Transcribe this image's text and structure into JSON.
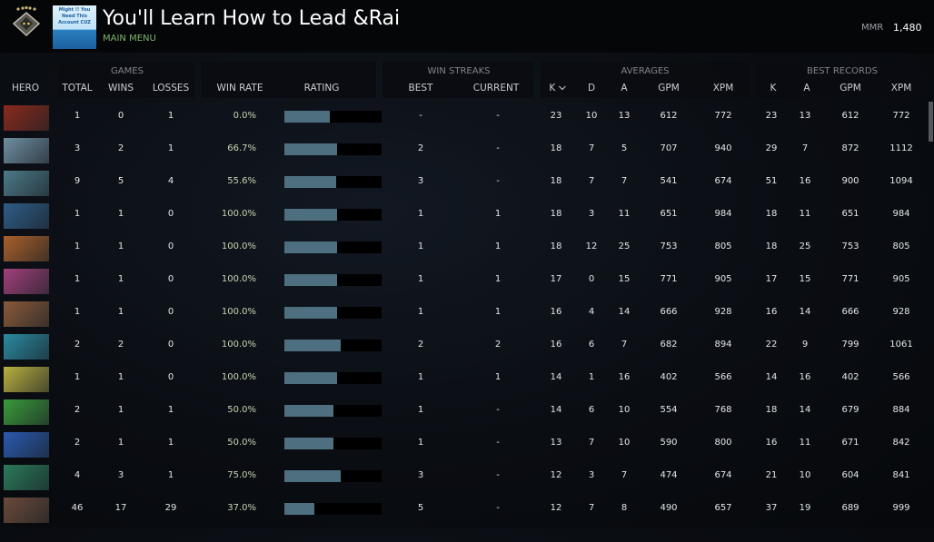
{
  "header": {
    "profile_name": "You'll Learn How to Lead &Rai",
    "subtitle": "MAIN MENU",
    "avatar_text": "Might !! You Need This Account CUZ",
    "mmr_label": "MMR",
    "mmr_value": "1,480"
  },
  "columns": {
    "hero": "HERO",
    "games_group": "GAMES",
    "total": "TOTAL",
    "wins": "WINS",
    "losses": "LOSSES",
    "win_rate": "WIN RATE",
    "rating": "RATING",
    "streaks_group": "WIN STREAKS",
    "best": "BEST",
    "current": "CURRENT",
    "averages_group": "AVERAGES",
    "k": "K",
    "d": "D",
    "a": "A",
    "gpm": "GPM",
    "xpm": "XPM",
    "records_group": "BEST RECORDS",
    "rk": "K",
    "ra": "A",
    "rgpm": "GPM",
    "rxpm": "XPM",
    "sort_icon": "chevron-down-icon"
  },
  "colors": {
    "rating_bar": "#4e6f80",
    "win_rate_text": "#c4d6b0",
    "subtitle": "#7fb46a"
  },
  "rows": [
    {
      "portrait_color": "#8a2a1c",
      "total": "1",
      "wins": "0",
      "losses": "1",
      "win_rate": "0.0%",
      "rating_fraction": 0.47,
      "best": "-",
      "current": "-",
      "k": "23",
      "d": "10",
      "a": "13",
      "gpm": "612",
      "xpm": "772",
      "rk": "23",
      "ra": "13",
      "rgpm": "612",
      "rxpm": "772"
    },
    {
      "portrait_color": "#6f8ea0",
      "total": "3",
      "wins": "2",
      "losses": "1",
      "win_rate": "66.7%",
      "rating_fraction": 0.54,
      "best": "2",
      "current": "-",
      "k": "18",
      "d": "7",
      "a": "5",
      "gpm": "707",
      "xpm": "940",
      "rk": "29",
      "ra": "7",
      "rgpm": "872",
      "rxpm": "1112"
    },
    {
      "portrait_color": "#4c7a88",
      "total": "9",
      "wins": "5",
      "losses": "4",
      "win_rate": "55.6%",
      "rating_fraction": 0.53,
      "best": "3",
      "current": "-",
      "k": "18",
      "d": "7",
      "a": "7",
      "gpm": "541",
      "xpm": "674",
      "rk": "51",
      "ra": "16",
      "rgpm": "900",
      "rxpm": "1094"
    },
    {
      "portrait_color": "#2e5d86",
      "total": "1",
      "wins": "1",
      "losses": "0",
      "win_rate": "100.0%",
      "rating_fraction": 0.54,
      "best": "1",
      "current": "1",
      "k": "18",
      "d": "3",
      "a": "11",
      "gpm": "651",
      "xpm": "984",
      "rk": "18",
      "ra": "11",
      "rgpm": "651",
      "rxpm": "984"
    },
    {
      "portrait_color": "#a8602a",
      "total": "1",
      "wins": "1",
      "losses": "0",
      "win_rate": "100.0%",
      "rating_fraction": 0.54,
      "best": "1",
      "current": "1",
      "k": "18",
      "d": "12",
      "a": "25",
      "gpm": "753",
      "xpm": "805",
      "rk": "18",
      "ra": "25",
      "rgpm": "753",
      "rxpm": "805"
    },
    {
      "portrait_color": "#a0407a",
      "total": "1",
      "wins": "1",
      "losses": "0",
      "win_rate": "100.0%",
      "rating_fraction": 0.54,
      "best": "1",
      "current": "1",
      "k": "17",
      "d": "0",
      "a": "15",
      "gpm": "771",
      "xpm": "905",
      "rk": "17",
      "ra": "15",
      "rgpm": "771",
      "rxpm": "905"
    },
    {
      "portrait_color": "#8a5a3a",
      "total": "1",
      "wins": "1",
      "losses": "0",
      "win_rate": "100.0%",
      "rating_fraction": 0.54,
      "best": "1",
      "current": "1",
      "k": "16",
      "d": "4",
      "a": "14",
      "gpm": "666",
      "xpm": "928",
      "rk": "16",
      "ra": "14",
      "rgpm": "666",
      "rxpm": "928"
    },
    {
      "portrait_color": "#2a8aa0",
      "total": "2",
      "wins": "2",
      "losses": "0",
      "win_rate": "100.0%",
      "rating_fraction": 0.58,
      "best": "2",
      "current": "2",
      "k": "16",
      "d": "6",
      "a": "7",
      "gpm": "682",
      "xpm": "894",
      "rk": "22",
      "ra": "9",
      "rgpm": "799",
      "rxpm": "1061"
    },
    {
      "portrait_color": "#b8b040",
      "total": "1",
      "wins": "1",
      "losses": "0",
      "win_rate": "100.0%",
      "rating_fraction": 0.54,
      "best": "1",
      "current": "1",
      "k": "14",
      "d": "1",
      "a": "16",
      "gpm": "402",
      "xpm": "566",
      "rk": "14",
      "ra": "16",
      "rgpm": "402",
      "rxpm": "566"
    },
    {
      "portrait_color": "#3a9a3a",
      "total": "2",
      "wins": "1",
      "losses": "1",
      "win_rate": "50.0%",
      "rating_fraction": 0.5,
      "best": "1",
      "current": "-",
      "k": "14",
      "d": "6",
      "a": "10",
      "gpm": "554",
      "xpm": "768",
      "rk": "18",
      "ra": "14",
      "rgpm": "679",
      "rxpm": "884"
    },
    {
      "portrait_color": "#2a5ab0",
      "total": "2",
      "wins": "1",
      "losses": "1",
      "win_rate": "50.0%",
      "rating_fraction": 0.5,
      "best": "1",
      "current": "-",
      "k": "13",
      "d": "7",
      "a": "10",
      "gpm": "590",
      "xpm": "800",
      "rk": "16",
      "ra": "11",
      "rgpm": "671",
      "rxpm": "842"
    },
    {
      "portrait_color": "#2a7a5a",
      "total": "4",
      "wins": "3",
      "losses": "1",
      "win_rate": "75.0%",
      "rating_fraction": 0.58,
      "best": "3",
      "current": "-",
      "k": "12",
      "d": "3",
      "a": "7",
      "gpm": "474",
      "xpm": "674",
      "rk": "21",
      "ra": "10",
      "rgpm": "604",
      "rxpm": "841"
    },
    {
      "portrait_color": "#6a4a3a",
      "total": "46",
      "wins": "17",
      "losses": "29",
      "win_rate": "37.0%",
      "rating_fraction": 0.31,
      "best": "5",
      "current": "-",
      "k": "12",
      "d": "7",
      "a": "8",
      "gpm": "490",
      "xpm": "657",
      "rk": "37",
      "ra": "19",
      "rgpm": "689",
      "rxpm": "999"
    }
  ]
}
